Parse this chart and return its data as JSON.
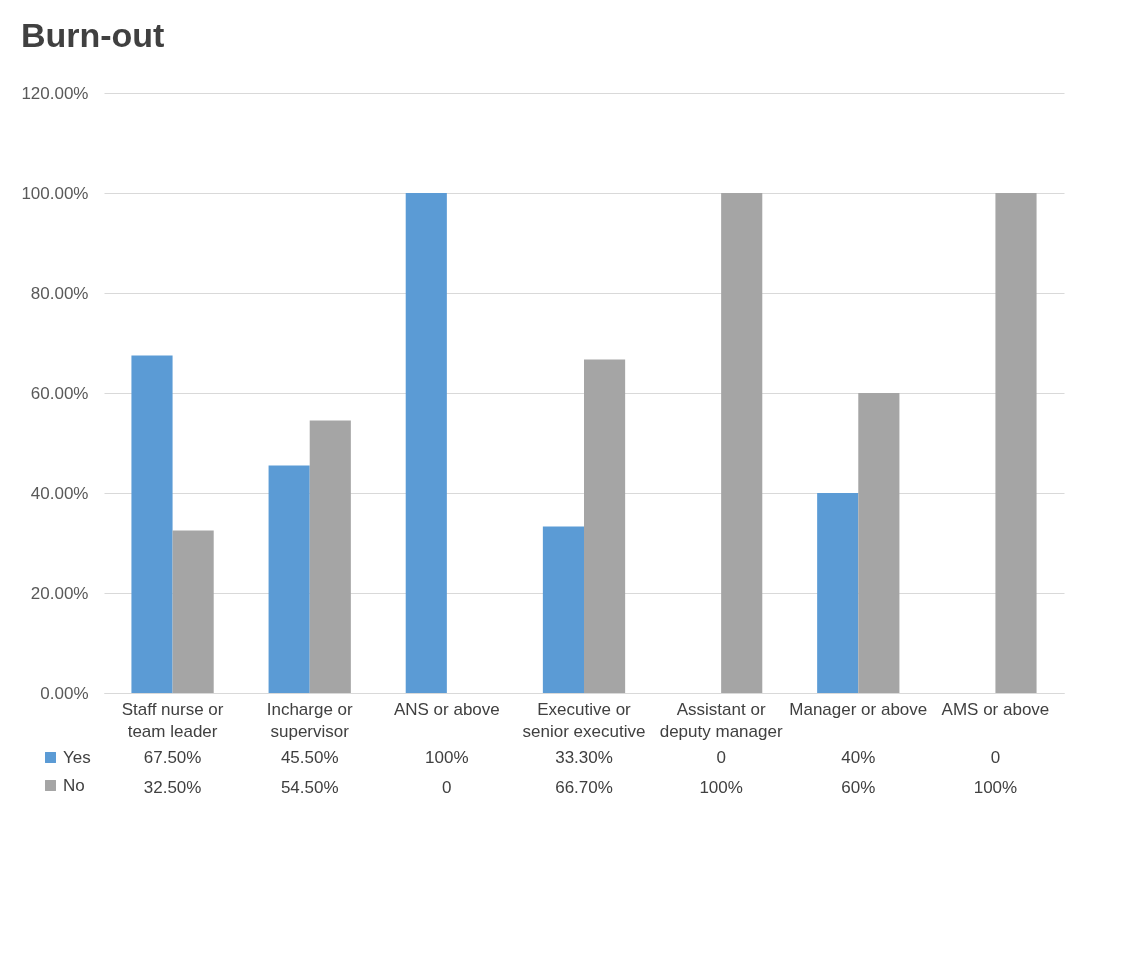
{
  "chart_data": {
    "type": "bar",
    "title": "Burn-out",
    "categories": [
      "Staff nurse or team leader",
      "Incharge or supervisor",
      "ANS or above",
      "Executive or senior executive",
      "Assistant or deputy manager",
      "Manager or above",
      "AMS or above"
    ],
    "series": [
      {
        "name": "Yes",
        "color": "#5b9bd5",
        "values": [
          67.5,
          45.5,
          100,
          33.3,
          0,
          40,
          0
        ],
        "value_labels": [
          "67.50%",
          "45.50%",
          "100%",
          "33.30%",
          "0",
          "40%",
          "0"
        ]
      },
      {
        "name": "No",
        "color": "#a5a5a5",
        "values": [
          32.5,
          54.5,
          0,
          66.7,
          100,
          60,
          100
        ],
        "value_labels": [
          "32.50%",
          "54.50%",
          "0",
          "66.70%",
          "100%",
          "60%",
          "100%"
        ]
      }
    ],
    "ylim": [
      0,
      120
    ],
    "yticks": [
      {
        "value": 0,
        "label": "0.00%"
      },
      {
        "value": 20,
        "label": "20.00%"
      },
      {
        "value": 40,
        "label": "40.00%"
      },
      {
        "value": 60,
        "label": "60.00%"
      },
      {
        "value": 80,
        "label": "80.00%"
      },
      {
        "value": 100,
        "label": "100.00%"
      },
      {
        "value": 120,
        "label": "120.00%"
      }
    ],
    "grid": "y",
    "legend": "bottom left"
  }
}
